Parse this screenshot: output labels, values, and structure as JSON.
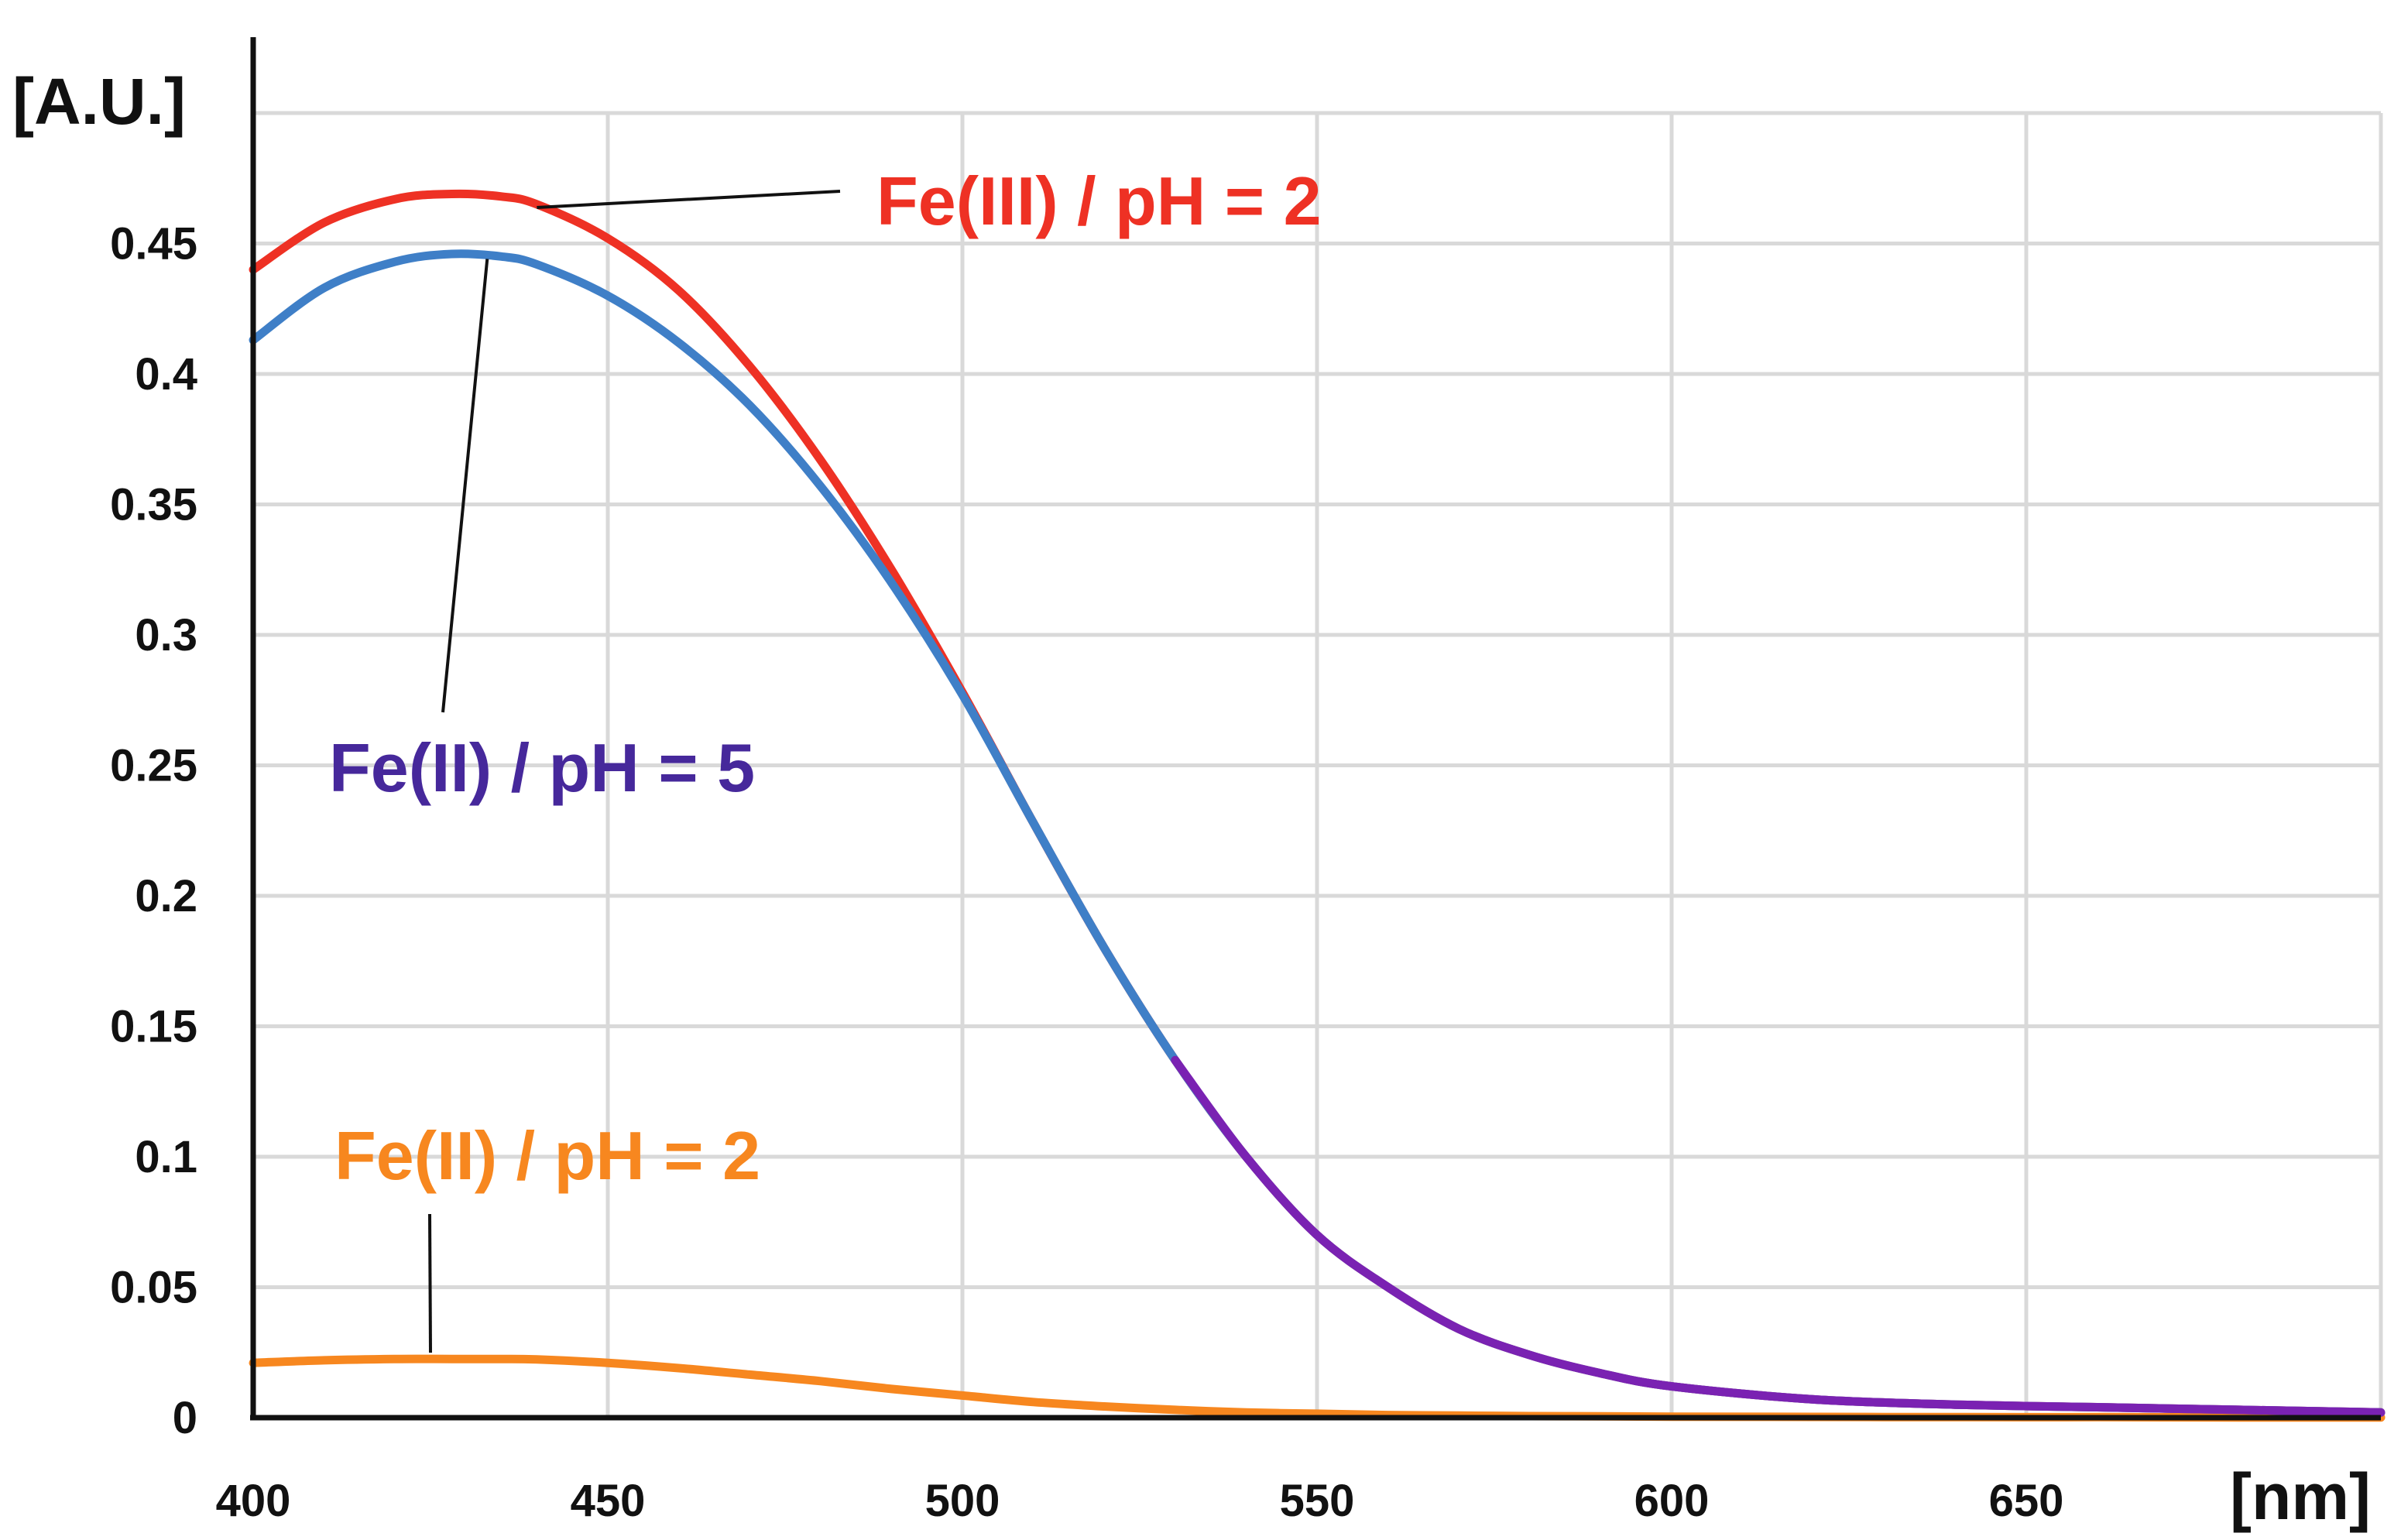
{
  "chart_data": {
    "type": "line",
    "title": "",
    "xlabel": "[nm]",
    "ylabel": "[A.U.]",
    "xlim": [
      400,
      700
    ],
    "ylim": [
      0,
      0.5
    ],
    "x_ticks": [
      400,
      450,
      500,
      550,
      600,
      650
    ],
    "x_tick_labels": [
      "400",
      "450",
      "500",
      "550",
      "600",
      "650"
    ],
    "y_ticks": [
      0,
      0.05,
      0.1,
      0.15,
      0.2,
      0.25,
      0.3,
      0.35,
      0.4,
      0.45
    ],
    "y_tick_labels": [
      "0",
      "0.05",
      "0.1",
      "0.15",
      "0.2",
      "0.25",
      "0.3",
      "0.35",
      "0.4",
      "0.45"
    ],
    "grid": true,
    "x": [
      400,
      410,
      420,
      428,
      435,
      440,
      450,
      460,
      470,
      480,
      490,
      500,
      510,
      520,
      530,
      540,
      550,
      560,
      570,
      580,
      590,
      600,
      620,
      640,
      660,
      680,
      700
    ],
    "series": [
      {
        "name": "Fe(III) / pH = 2",
        "color": "#ee3124",
        "values": [
          0.44,
          0.458,
          0.467,
          0.469,
          0.468,
          0.465,
          0.452,
          0.432,
          0.403,
          0.367,
          0.325,
          0.278,
          0.228,
          0.18,
          0.137,
          0.1,
          0.07,
          0.05,
          0.034,
          0.024,
          0.017,
          0.012,
          0.007,
          0.005,
          0.004,
          0.003,
          0.002
        ]
      },
      {
        "name": "Fe(II) / pH = 5",
        "color": "#3f7fc7",
        "values": [
          0.413,
          0.433,
          0.443,
          0.446,
          0.445,
          0.442,
          0.43,
          0.412,
          0.388,
          0.357,
          0.32,
          0.277,
          0.228,
          0.18,
          0.137,
          0.1,
          0.07,
          0.05,
          0.034,
          0.024,
          0.017,
          0.012,
          0.007,
          0.005,
          0.004,
          0.003,
          0.002
        ]
      },
      {
        "name": "Fe(II) / pH = 2",
        "color": "#f7871f",
        "values": [
          0.021,
          0.022,
          0.0225,
          0.0225,
          0.0225,
          0.0223,
          0.021,
          0.019,
          0.0165,
          0.014,
          0.011,
          0.0085,
          0.006,
          0.0043,
          0.003,
          0.002,
          0.0015,
          0.001,
          0.0008,
          0.0006,
          0.0005,
          0.0004,
          0.0003,
          0.0002,
          0.0002,
          0.0001,
          0.0001
        ]
      }
    ],
    "annotations": [
      {
        "text": "Fe(III) / pH = 2",
        "color": "#ee3124",
        "points_to_x": 440,
        "series": "Fe(III) / pH = 2"
      },
      {
        "text": "Fe(II) / pH = 5",
        "color": "#46289b",
        "points_to_x": 433,
        "series": "Fe(II) / pH = 5"
      },
      {
        "text": "Fe(II) / pH = 2",
        "color": "#f7871f",
        "points_to_x": 425,
        "series": "Fe(II) / pH = 2"
      }
    ]
  }
}
